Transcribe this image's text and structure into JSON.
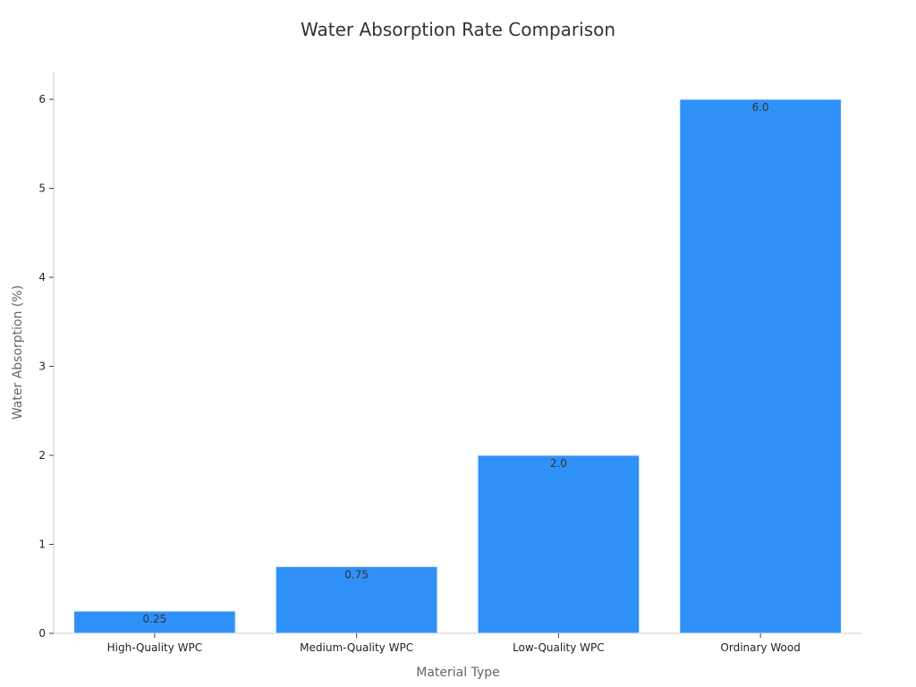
{
  "chart_data": {
    "type": "bar",
    "title": "Water Absorption Rate Comparison",
    "xlabel": "Material Type",
    "ylabel": "Water Absorption (%)",
    "categories": [
      "High-Quality WPC",
      "Medium-Quality WPC",
      "Low-Quality WPC",
      "Ordinary Wood"
    ],
    "values": [
      0.25,
      0.75,
      2.0,
      6.0
    ],
    "value_labels": [
      "0.25",
      "0.75",
      "2.0",
      "6.0"
    ],
    "ylim": [
      0,
      6.3
    ],
    "yticks": [
      0,
      1,
      2,
      3,
      4,
      5,
      6
    ],
    "grid": false,
    "legend": "none",
    "bar_color": "#2f91f7"
  }
}
